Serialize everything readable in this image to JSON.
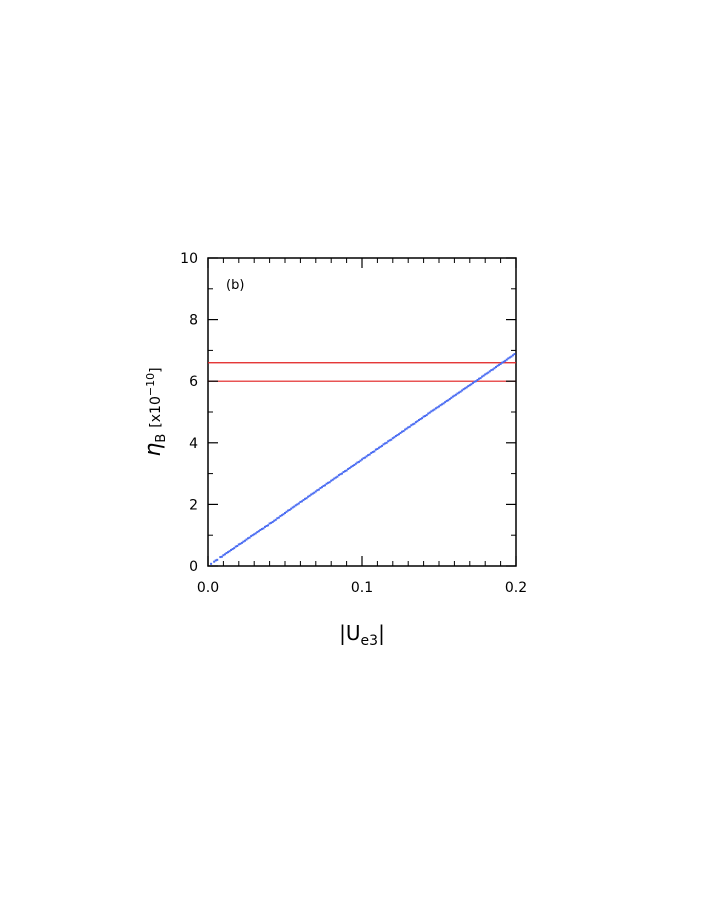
{
  "chart_data": {
    "type": "scatter",
    "panel_label": "(b)",
    "xlabel": {
      "base": "|U",
      "sub": "e3",
      "close": "|"
    },
    "ylabel": {
      "symbol": "η",
      "sub": "B",
      "scale": "[x10",
      "exp": "−10",
      "close": "]"
    },
    "xlim": [
      0,
      0.2
    ],
    "ylim": [
      0,
      10
    ],
    "xticks": [
      0.0,
      0.1,
      0.2
    ],
    "xtick_labels": [
      "0.0",
      "0.1",
      "0.2"
    ],
    "yticks": [
      0,
      2,
      4,
      6,
      8,
      10
    ],
    "ytick_labels": [
      "0",
      "2",
      "4",
      "6",
      "8",
      "10"
    ],
    "grid": false,
    "colors": {
      "points": "#4a6cf2",
      "band": "#e01b1b",
      "axes": "#000000"
    },
    "reference_lines": [
      {
        "y": 6.0
      },
      {
        "y": 6.6
      }
    ],
    "series": [
      {
        "points": [
          [
            0.002,
            0.07
          ],
          [
            0.004,
            0.14
          ],
          [
            0.005,
            0.18
          ],
          [
            0.006,
            0.2
          ],
          [
            0.008,
            0.29
          ],
          [
            0.009,
            0.3
          ],
          [
            0.01,
            0.35
          ],
          [
            0.011,
            0.38
          ],
          [
            0.012,
            0.42
          ],
          [
            0.013,
            0.45
          ],
          [
            0.014,
            0.48
          ],
          [
            0.015,
            0.52
          ],
          [
            0.016,
            0.55
          ],
          [
            0.017,
            0.58
          ],
          [
            0.018,
            0.63
          ],
          [
            0.019,
            0.65
          ],
          [
            0.02,
            0.7
          ],
          [
            0.021,
            0.72
          ],
          [
            0.022,
            0.75
          ],
          [
            0.023,
            0.79
          ],
          [
            0.024,
            0.82
          ],
          [
            0.025,
            0.86
          ],
          [
            0.026,
            0.9
          ],
          [
            0.027,
            0.92
          ],
          [
            0.028,
            0.97
          ],
          [
            0.029,
            1.0
          ],
          [
            0.03,
            1.03
          ],
          [
            0.031,
            1.06
          ],
          [
            0.032,
            1.1
          ],
          [
            0.033,
            1.13
          ],
          [
            0.034,
            1.17
          ],
          [
            0.035,
            1.2
          ],
          [
            0.036,
            1.22
          ],
          [
            0.037,
            1.27
          ],
          [
            0.038,
            1.3
          ],
          [
            0.039,
            1.32
          ],
          [
            0.04,
            1.38
          ],
          [
            0.041,
            1.4
          ],
          [
            0.042,
            1.43
          ],
          [
            0.043,
            1.47
          ],
          [
            0.044,
            1.5
          ],
          [
            0.045,
            1.55
          ],
          [
            0.046,
            1.57
          ],
          [
            0.047,
            1.62
          ],
          [
            0.048,
            1.65
          ],
          [
            0.049,
            1.68
          ],
          [
            0.05,
            1.72
          ],
          [
            0.051,
            1.76
          ],
          [
            0.052,
            1.8
          ],
          [
            0.053,
            1.82
          ],
          [
            0.054,
            1.86
          ],
          [
            0.055,
            1.9
          ],
          [
            0.056,
            1.93
          ],
          [
            0.057,
            1.97
          ],
          [
            0.058,
            2.0
          ],
          [
            0.059,
            2.03
          ],
          [
            0.06,
            2.08
          ],
          [
            0.061,
            2.1
          ],
          [
            0.062,
            2.14
          ],
          [
            0.063,
            2.18
          ],
          [
            0.064,
            2.2
          ],
          [
            0.065,
            2.25
          ],
          [
            0.066,
            2.28
          ],
          [
            0.067,
            2.32
          ],
          [
            0.068,
            2.35
          ],
          [
            0.069,
            2.38
          ],
          [
            0.07,
            2.42
          ],
          [
            0.071,
            2.46
          ],
          [
            0.072,
            2.48
          ],
          [
            0.073,
            2.53
          ],
          [
            0.074,
            2.56
          ],
          [
            0.075,
            2.6
          ],
          [
            0.076,
            2.62
          ],
          [
            0.077,
            2.67
          ],
          [
            0.078,
            2.7
          ],
          [
            0.079,
            2.72
          ],
          [
            0.08,
            2.77
          ],
          [
            0.081,
            2.8
          ],
          [
            0.082,
            2.84
          ],
          [
            0.083,
            2.87
          ],
          [
            0.084,
            2.9
          ],
          [
            0.085,
            2.95
          ],
          [
            0.086,
            2.98
          ],
          [
            0.087,
            3.0
          ],
          [
            0.088,
            3.05
          ],
          [
            0.089,
            3.08
          ],
          [
            0.09,
            3.1
          ],
          [
            0.091,
            3.15
          ],
          [
            0.092,
            3.18
          ],
          [
            0.093,
            3.22
          ],
          [
            0.094,
            3.25
          ],
          [
            0.095,
            3.28
          ],
          [
            0.096,
            3.32
          ],
          [
            0.097,
            3.36
          ],
          [
            0.098,
            3.38
          ],
          [
            0.099,
            3.42
          ],
          [
            0.1,
            3.46
          ],
          [
            0.101,
            3.5
          ],
          [
            0.102,
            3.52
          ],
          [
            0.103,
            3.56
          ],
          [
            0.104,
            3.6
          ],
          [
            0.105,
            3.62
          ],
          [
            0.106,
            3.67
          ],
          [
            0.107,
            3.7
          ],
          [
            0.108,
            3.72
          ],
          [
            0.109,
            3.78
          ],
          [
            0.11,
            3.8
          ],
          [
            0.111,
            3.84
          ],
          [
            0.112,
            3.87
          ],
          [
            0.113,
            3.9
          ],
          [
            0.114,
            3.95
          ],
          [
            0.115,
            3.98
          ],
          [
            0.116,
            4.0
          ],
          [
            0.117,
            4.05
          ],
          [
            0.118,
            4.08
          ],
          [
            0.119,
            4.1
          ],
          [
            0.12,
            4.15
          ],
          [
            0.121,
            4.18
          ],
          [
            0.122,
            4.22
          ],
          [
            0.123,
            4.25
          ],
          [
            0.124,
            4.28
          ],
          [
            0.125,
            4.32
          ],
          [
            0.126,
            4.36
          ],
          [
            0.127,
            4.38
          ],
          [
            0.128,
            4.43
          ],
          [
            0.129,
            4.46
          ],
          [
            0.13,
            4.5
          ],
          [
            0.131,
            4.52
          ],
          [
            0.132,
            4.57
          ],
          [
            0.133,
            4.6
          ],
          [
            0.134,
            4.62
          ],
          [
            0.135,
            4.67
          ],
          [
            0.136,
            4.7
          ],
          [
            0.137,
            4.74
          ],
          [
            0.138,
            4.77
          ],
          [
            0.139,
            4.8
          ],
          [
            0.14,
            4.85
          ],
          [
            0.141,
            4.87
          ],
          [
            0.142,
            4.9
          ],
          [
            0.143,
            4.95
          ],
          [
            0.144,
            4.98
          ],
          [
            0.145,
            5.02
          ],
          [
            0.146,
            5.05
          ],
          [
            0.147,
            5.08
          ],
          [
            0.148,
            5.12
          ],
          [
            0.149,
            5.15
          ],
          [
            0.15,
            5.18
          ],
          [
            0.151,
            5.22
          ],
          [
            0.152,
            5.25
          ],
          [
            0.153,
            5.28
          ],
          [
            0.154,
            5.32
          ],
          [
            0.155,
            5.36
          ],
          [
            0.156,
            5.38
          ],
          [
            0.157,
            5.42
          ],
          [
            0.158,
            5.46
          ],
          [
            0.159,
            5.5
          ],
          [
            0.16,
            5.53
          ],
          [
            0.161,
            5.56
          ],
          [
            0.162,
            5.6
          ],
          [
            0.163,
            5.63
          ],
          [
            0.164,
            5.66
          ],
          [
            0.165,
            5.7
          ],
          [
            0.166,
            5.74
          ],
          [
            0.167,
            5.77
          ],
          [
            0.168,
            5.8
          ],
          [
            0.169,
            5.84
          ],
          [
            0.17,
            5.87
          ],
          [
            0.171,
            5.9
          ],
          [
            0.172,
            5.94
          ],
          [
            0.173,
            5.98
          ],
          [
            0.174,
            6.0
          ],
          [
            0.175,
            6.04
          ],
          [
            0.176,
            6.08
          ],
          [
            0.177,
            6.1
          ],
          [
            0.178,
            6.15
          ],
          [
            0.179,
            6.18
          ],
          [
            0.18,
            6.22
          ],
          [
            0.181,
            6.25
          ],
          [
            0.182,
            6.28
          ],
          [
            0.183,
            6.32
          ],
          [
            0.184,
            6.36
          ],
          [
            0.185,
            6.38
          ],
          [
            0.186,
            6.42
          ],
          [
            0.187,
            6.46
          ],
          [
            0.188,
            6.5
          ],
          [
            0.189,
            6.53
          ],
          [
            0.19,
            6.56
          ],
          [
            0.191,
            6.6
          ],
          [
            0.192,
            6.63
          ],
          [
            0.193,
            6.66
          ],
          [
            0.194,
            6.7
          ],
          [
            0.195,
            6.74
          ],
          [
            0.196,
            6.77
          ],
          [
            0.197,
            6.8
          ],
          [
            0.198,
            6.84
          ],
          [
            0.199,
            6.88
          ]
        ]
      }
    ]
  }
}
